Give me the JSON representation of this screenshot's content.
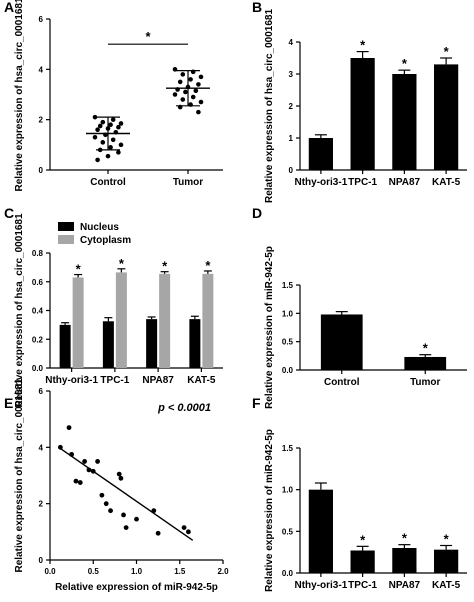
{
  "chart_data": [
    {
      "panel": "A",
      "type": "scatter",
      "ylabel": "Relative expression of hsa_circ_0001681",
      "categories": [
        "Control",
        "Tumor"
      ],
      "ylim": [
        0,
        6
      ],
      "yticks": [
        0,
        2,
        4,
        6
      ],
      "groups": [
        {
          "category": "Control",
          "mean": 1.45,
          "sd": 0.65,
          "values": [
            2.1,
            2.0,
            1.9,
            1.85,
            1.8,
            1.75,
            1.7,
            1.65,
            1.6,
            1.5,
            1.4,
            1.3,
            1.2,
            1.1,
            1.0,
            0.9,
            0.8,
            0.7,
            0.55,
            0.4
          ]
        },
        {
          "category": "Tumor",
          "mean": 3.25,
          "sd": 0.7,
          "values": [
            4.0,
            3.9,
            3.8,
            3.7,
            3.6,
            3.5,
            3.4,
            3.3,
            3.2,
            3.15,
            3.1,
            3.0,
            2.9,
            2.8,
            2.7,
            2.6,
            2.5,
            2.3
          ]
        }
      ],
      "significance": [
        {
          "between": [
            "Control",
            "Tumor"
          ],
          "label": "*"
        }
      ]
    },
    {
      "panel": "B",
      "type": "bar",
      "ylabel": "Relative expression of hsa_circ_0001681",
      "categories": [
        "Nthy-ori3-1",
        "TPC-1",
        "NPA87",
        "KAT-5"
      ],
      "values": [
        1.0,
        3.5,
        3.0,
        3.3
      ],
      "errors": [
        0.1,
        0.2,
        0.12,
        0.2
      ],
      "marks": [
        "",
        "*",
        "*",
        "*"
      ],
      "ylim": [
        0,
        4
      ],
      "yticks": [
        0,
        1,
        2,
        3,
        4
      ]
    },
    {
      "panel": "C",
      "type": "bar",
      "ylabel": "Relative expression of hsa_circ_0001681",
      "categories": [
        "Nthy-ori3-1",
        "TPC-1",
        "NPA87",
        "KAT-5"
      ],
      "series": [
        {
          "name": "Nucleus",
          "color": "#000000",
          "values": [
            0.3,
            0.325,
            0.34,
            0.34
          ],
          "errors": [
            0.015,
            0.025,
            0.015,
            0.02
          ]
        },
        {
          "name": "Cytoplasm",
          "color": "#a6a6a6",
          "values": [
            0.63,
            0.665,
            0.655,
            0.655
          ],
          "errors": [
            0.02,
            0.025,
            0.015,
            0.02
          ],
          "marks": [
            "*",
            "*",
            "*",
            "*"
          ]
        }
      ],
      "legend": "top-left",
      "ylim": [
        0,
        0.8
      ],
      "yticks": [
        0.0,
        0.2,
        0.4,
        0.6,
        0.8
      ],
      "ytick_labels": [
        "0.0",
        "0.2",
        "0.4",
        "0.6",
        "0.8"
      ]
    },
    {
      "panel": "D",
      "type": "bar",
      "ylabel": "Relative expression of miR-942-5p",
      "categories": [
        "Control",
        "Tumor"
      ],
      "values": [
        0.98,
        0.23
      ],
      "errors": [
        0.05,
        0.04
      ],
      "marks": [
        "",
        "*"
      ],
      "ylim": [
        0,
        1.5
      ],
      "yticks": [
        0.0,
        0.5,
        1.0,
        1.5
      ],
      "ytick_labels": [
        "0.0",
        "0.5",
        "1.0",
        "1.5"
      ]
    },
    {
      "panel": "E",
      "type": "scatter",
      "ylabel": "Relative expression of hsa_circ_0001681",
      "xlabel": "Relative expression of miR-942-5p",
      "points": [
        {
          "x": 0.12,
          "y": 4.0
        },
        {
          "x": 0.22,
          "y": 4.7
        },
        {
          "x": 0.25,
          "y": 3.75
        },
        {
          "x": 0.3,
          "y": 2.8
        },
        {
          "x": 0.35,
          "y": 2.75
        },
        {
          "x": 0.4,
          "y": 3.5
        },
        {
          "x": 0.45,
          "y": 3.2
        },
        {
          "x": 0.5,
          "y": 3.15
        },
        {
          "x": 0.55,
          "y": 3.5
        },
        {
          "x": 0.6,
          "y": 2.3
        },
        {
          "x": 0.65,
          "y": 2.0
        },
        {
          "x": 0.7,
          "y": 1.75
        },
        {
          "x": 0.8,
          "y": 3.05
        },
        {
          "x": 0.82,
          "y": 2.9
        },
        {
          "x": 0.85,
          "y": 1.6
        },
        {
          "x": 0.88,
          "y": 1.15
        },
        {
          "x": 1.0,
          "y": 1.45
        },
        {
          "x": 1.2,
          "y": 1.75
        },
        {
          "x": 1.25,
          "y": 0.95
        },
        {
          "x": 1.55,
          "y": 1.15
        },
        {
          "x": 1.6,
          "y": 1.0
        }
      ],
      "fit_line": {
        "x1": 0.1,
        "y1": 4.0,
        "x2": 1.65,
        "y2": 0.7
      },
      "annotation": "p < 0.0001",
      "xlim": [
        0,
        2.0
      ],
      "xticks": [
        0.0,
        0.5,
        1.0,
        1.5,
        2.0
      ],
      "xtick_labels": [
        "0.0",
        "0.5",
        "1.0",
        "1.5",
        "2.0"
      ],
      "ylim": [
        0,
        6
      ],
      "yticks": [
        0,
        2,
        4,
        6
      ]
    },
    {
      "panel": "F",
      "type": "bar",
      "ylabel": "Relative expression of miR-942-5p",
      "categories": [
        "Nthy-ori3-1",
        "TPC-1",
        "NPA87",
        "KAT-5"
      ],
      "values": [
        1.0,
        0.27,
        0.3,
        0.28
      ],
      "errors": [
        0.08,
        0.05,
        0.04,
        0.05
      ],
      "marks": [
        "",
        "*",
        "*",
        "*"
      ],
      "ylim": [
        0,
        1.5
      ],
      "yticks": [
        0.0,
        0.5,
        1.0,
        1.5
      ],
      "ytick_labels": [
        "0.0",
        "0.5",
        "1.0",
        "1.5"
      ]
    }
  ]
}
